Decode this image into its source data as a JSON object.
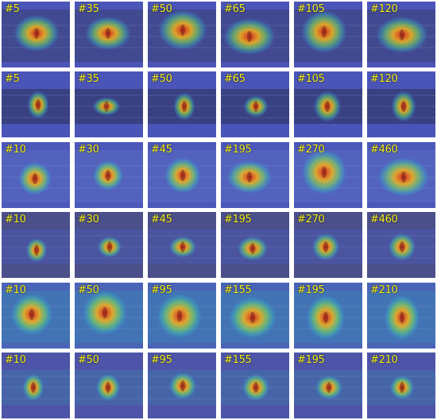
{
  "rows": [
    {
      "colors": {
        "base": "#4b55b8",
        "scene": "#3a3f70"
      },
      "tiles": [
        {
          "label": "#5"
        },
        {
          "label": "#35"
        },
        {
          "label": "#50"
        },
        {
          "label": "#65"
        },
        {
          "label": "#105"
        },
        {
          "label": "#120"
        }
      ]
    },
    {
      "colors": {
        "base": "#4b55b8",
        "scene": "#2b3158"
      },
      "tiles": [
        {
          "label": "#5"
        },
        {
          "label": "#35"
        },
        {
          "label": "#50"
        },
        {
          "label": "#65"
        },
        {
          "label": "#105"
        },
        {
          "label": "#120"
        }
      ]
    },
    {
      "colors": {
        "base": "#4d58bb",
        "scene": "#5a6ec0"
      },
      "tiles": [
        {
          "label": "#10"
        },
        {
          "label": "#30"
        },
        {
          "label": "#45"
        },
        {
          "label": "#195"
        },
        {
          "label": "#270"
        },
        {
          "label": "#460"
        }
      ]
    },
    {
      "colors": {
        "base": "#4b4f8a",
        "scene": "#4b5ab0"
      },
      "tiles": [
        {
          "label": "#10"
        },
        {
          "label": "#30"
        },
        {
          "label": "#45"
        },
        {
          "label": "#195"
        },
        {
          "label": "#270"
        },
        {
          "label": "#460"
        }
      ]
    },
    {
      "colors": {
        "base": "#4a64b8",
        "scene": "#3c7fb0"
      },
      "tiles": [
        {
          "label": "#10"
        },
        {
          "label": "#50"
        },
        {
          "label": "#95"
        },
        {
          "label": "#155"
        },
        {
          "label": "#195"
        },
        {
          "label": "#210"
        }
      ]
    },
    {
      "colors": {
        "base": "#4e55a8",
        "scene": "#3f73a8"
      },
      "tiles": [
        {
          "label": "#10"
        },
        {
          "label": "#50"
        },
        {
          "label": "#95"
        },
        {
          "label": "#155"
        },
        {
          "label": "#195"
        },
        {
          "label": "#210"
        }
      ]
    }
  ],
  "colors": {
    "label": "#f3ef1c",
    "heat_hot": "#e2231a",
    "heat_warm": "#f4b41a",
    "heat_mid": "#7ddc5a",
    "heat_cool": "#36b3c8"
  }
}
